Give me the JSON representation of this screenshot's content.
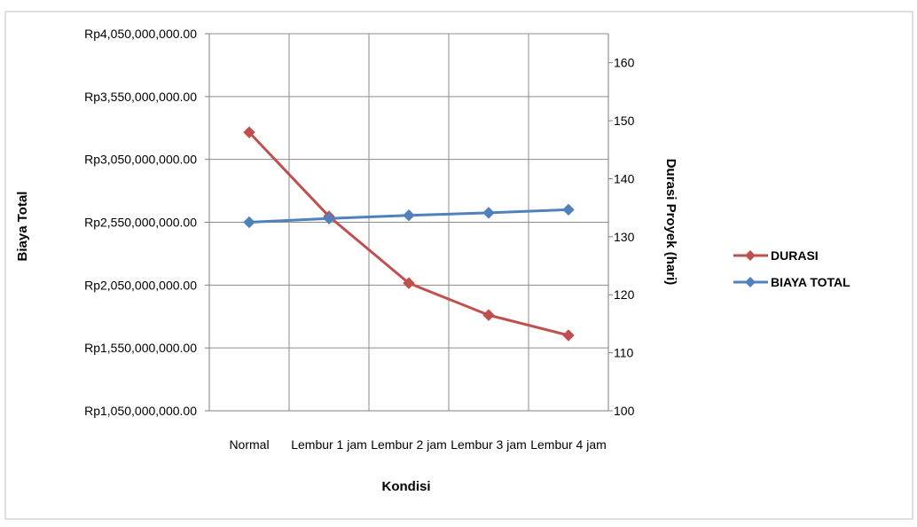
{
  "chart_data": {
    "type": "line",
    "title": "",
    "categories": [
      "Normal",
      "Lembur 1 jam",
      "Lembur 2 jam",
      "Lembur 3 jam",
      "Lembur 4 jam"
    ],
    "xlabel": "Kondisi",
    "ylabel": "Biaya Total",
    "y2label": "Durasi Proyek (hari)",
    "y_left": {
      "min": 1050000000,
      "max": 4050000000,
      "step": 500000000,
      "tick_labels": [
        "Rp1,050,000,000.00",
        "Rp1,550,000,000.00",
        "Rp2,050,000,000.00",
        "Rp2,550,000,000.00",
        "Rp3,050,000,000.00",
        "Rp3,550,000,000.00",
        "Rp4,050,000,000.00"
      ]
    },
    "y_right": {
      "min": 100,
      "max": 165,
      "step": 10,
      "tick_labels": [
        "100",
        "110",
        "120",
        "130",
        "140",
        "150",
        "160"
      ]
    },
    "series": [
      {
        "name": "DURASI",
        "axis": "right",
        "color": "#c0504d",
        "marker": "diamond",
        "values": [
          148,
          133.5,
          122,
          116.5,
          113
        ]
      },
      {
        "name": "BIAYA TOTAL",
        "axis": "left",
        "color": "#4f81bd",
        "marker": "diamond",
        "values": [
          2550000000,
          2580000000,
          2605000000,
          2625000000,
          2650000000
        ]
      }
    ],
    "grid": "vertical",
    "legend_position": "right"
  }
}
